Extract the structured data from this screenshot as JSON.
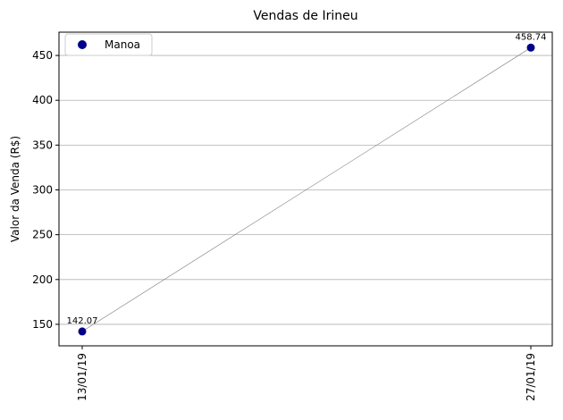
{
  "chart_data": {
    "type": "scatter",
    "title": "Vendas de Irineu",
    "xlabel": "",
    "ylabel": "Valor da Venda (R$)",
    "x": [
      "13/01/19",
      "27/01/19"
    ],
    "series": [
      {
        "name": "Manoa",
        "values": [
          142.07,
          458.74
        ],
        "color": "#00008b"
      }
    ],
    "data_labels": [
      "142.07",
      "458.74"
    ],
    "connector_line_color": "#808080",
    "ylim": [
      126,
      476
    ],
    "yticks": [
      150,
      200,
      250,
      300,
      350,
      400,
      450
    ],
    "grid": "horizontal",
    "legend_position": "top-left"
  }
}
